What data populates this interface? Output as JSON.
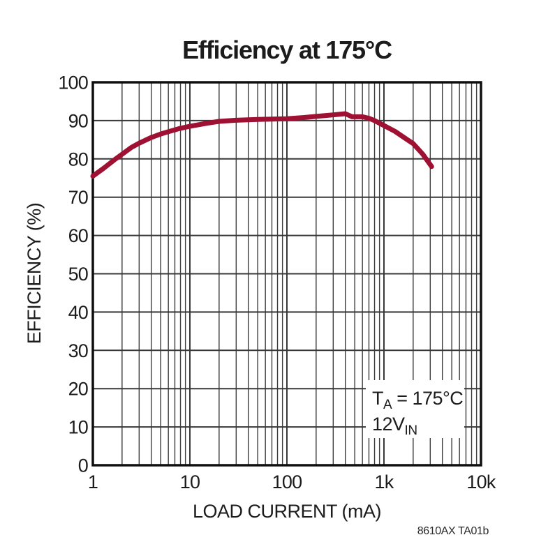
{
  "figure_code": "8610AX TA01b",
  "colors": {
    "curve": "#9E1133",
    "grid": "#3b3b3b",
    "frame": "#0f0f0f",
    "background": "#ffffff",
    "text": "#1c1c1c"
  },
  "chart_data": {
    "type": "line",
    "title": "Efficiency at 175°C",
    "xlabel": "LOAD CURRENT (mA)",
    "ylabel": "EFFICIENCY (%)",
    "x_scale": "log",
    "xlim": [
      1,
      10000
    ],
    "ylim": [
      0,
      100
    ],
    "grid": "major-y every 10, log minor-x (2-9 per decade), full frame",
    "legend": "none",
    "x_ticks": [
      {
        "label": "1",
        "value": 1
      },
      {
        "label": "10",
        "value": 10
      },
      {
        "label": "100",
        "value": 100
      },
      {
        "label": "1k",
        "value": 1000
      },
      {
        "label": "10k",
        "value": 10000
      }
    ],
    "y_ticks": [
      {
        "label": "0",
        "value": 0
      },
      {
        "label": "10",
        "value": 10
      },
      {
        "label": "20",
        "value": 20
      },
      {
        "label": "30",
        "value": 30
      },
      {
        "label": "40",
        "value": 40
      },
      {
        "label": "50",
        "value": 50
      },
      {
        "label": "60",
        "value": 60
      },
      {
        "label": "70",
        "value": 70
      },
      {
        "label": "80",
        "value": 80
      },
      {
        "label": "90",
        "value": 90
      },
      {
        "label": "100",
        "value": 100
      }
    ],
    "annotation": {
      "line1_main": "T",
      "line1_sub": "A",
      "line1_rest": " = 175°C",
      "line2_main": "12V",
      "line2_sub": "IN"
    },
    "series": [
      {
        "name": "efficiency-12vin-175c",
        "color": "#9E1133",
        "points": [
          [
            1,
            75.5
          ],
          [
            1.3,
            77.6
          ],
          [
            1.7,
            79.9
          ],
          [
            2,
            81.2
          ],
          [
            2.5,
            83.0
          ],
          [
            3,
            84.1
          ],
          [
            4,
            85.6
          ],
          [
            5,
            86.5
          ],
          [
            6,
            87.1
          ],
          [
            8,
            88.0
          ],
          [
            10,
            88.5
          ],
          [
            15,
            89.3
          ],
          [
            20,
            89.8
          ],
          [
            30,
            90.1
          ],
          [
            50,
            90.3
          ],
          [
            70,
            90.4
          ],
          [
            100,
            90.5
          ],
          [
            150,
            90.8
          ],
          [
            200,
            91.1
          ],
          [
            300,
            91.5
          ],
          [
            400,
            91.8
          ],
          [
            470,
            91.0
          ],
          [
            600,
            91.0
          ],
          [
            700,
            90.6
          ],
          [
            800,
            90.0
          ],
          [
            1000,
            88.7
          ],
          [
            1300,
            87.2
          ],
          [
            1700,
            85.2
          ],
          [
            2000,
            84.0
          ],
          [
            2500,
            81.3
          ],
          [
            3100,
            78.0
          ]
        ]
      }
    ]
  }
}
